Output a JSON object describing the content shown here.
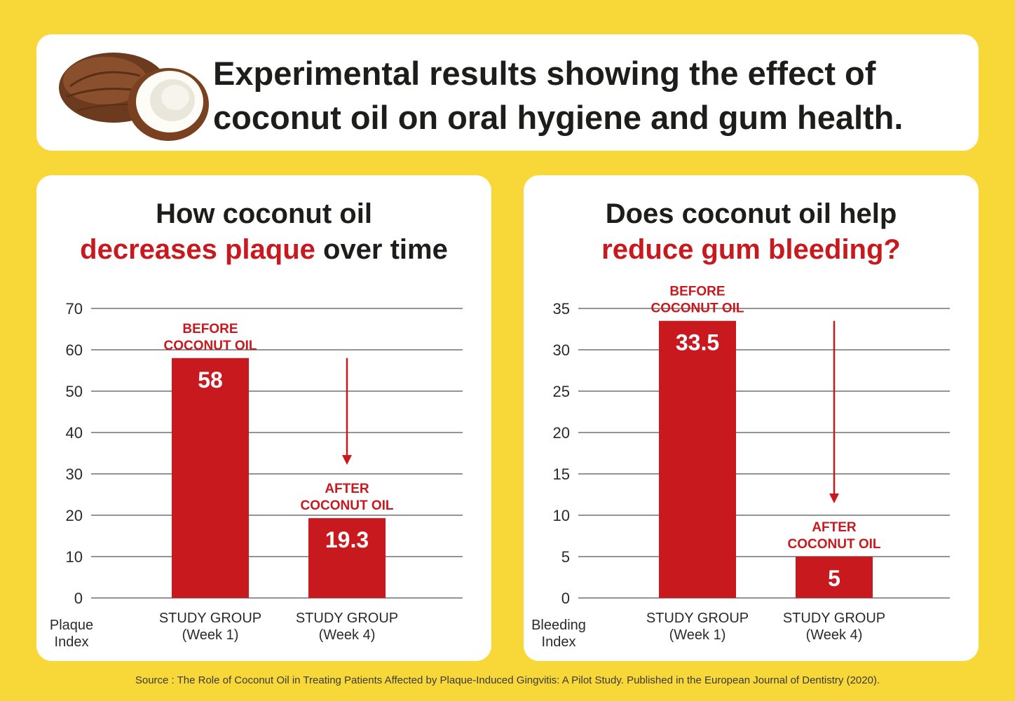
{
  "header": {
    "title_line1": "Experimental results showing the effect of",
    "title_line2": "coconut oil on oral hygiene and gum health.",
    "image_icon": "coconut-illustration"
  },
  "colors": {
    "background": "#f8d838",
    "card": "#ffffff",
    "accent_red": "#c8191e",
    "text_dark": "#1d1d1b"
  },
  "chart_data": [
    {
      "type": "bar",
      "title_line1": "How coconut oil",
      "title_line2_highlight": "decreases plaque",
      "title_line2_rest": " over time",
      "ylabel_line1": "Plaque",
      "ylabel_line2": "Index",
      "ylim": [
        0,
        70
      ],
      "yticks": [
        "0",
        "10",
        "20",
        "30",
        "40",
        "50",
        "60",
        "70"
      ],
      "grid": true,
      "categories": [
        {
          "line1": "STUDY GROUP",
          "line2": "(Week 1)"
        },
        {
          "line1": "STUDY GROUP",
          "line2": "(Week 4)"
        }
      ],
      "values": [
        58,
        19.3
      ],
      "value_labels": [
        "58",
        "19.3"
      ],
      "bar_annotations": [
        {
          "line1": "BEFORE",
          "line2": "COCONUT OIL"
        },
        {
          "line1": "AFTER",
          "line2": "COCONUT OIL"
        }
      ],
      "trend_arrow": "down"
    },
    {
      "type": "bar",
      "title_line1": "Does coconut oil help",
      "title_line2_highlight": "reduce gum bleeding?",
      "title_line2_rest": "",
      "ylabel_line1": "Bleeding",
      "ylabel_line2": "Index",
      "ylim": [
        0,
        35
      ],
      "yticks": [
        "0",
        "5",
        "10",
        "15",
        "20",
        "25",
        "30",
        "35"
      ],
      "grid": true,
      "categories": [
        {
          "line1": "STUDY GROUP",
          "line2": "(Week 1)"
        },
        {
          "line1": "STUDY GROUP",
          "line2": "(Week 4)"
        }
      ],
      "values": [
        33.5,
        5
      ],
      "value_labels": [
        "33.5",
        "5"
      ],
      "bar_annotations": [
        {
          "line1": "BEFORE",
          "line2": "COCONUT OIL"
        },
        {
          "line1": "AFTER",
          "line2": "COCONUT OIL"
        }
      ],
      "trend_arrow": "down"
    }
  ],
  "footer": {
    "source": "Source : The Role of Coconut Oil in Treating Patients Affected by Plaque-Induced Gingvitis: A Pilot Study. Published in the European Journal of Dentistry (2020)."
  }
}
